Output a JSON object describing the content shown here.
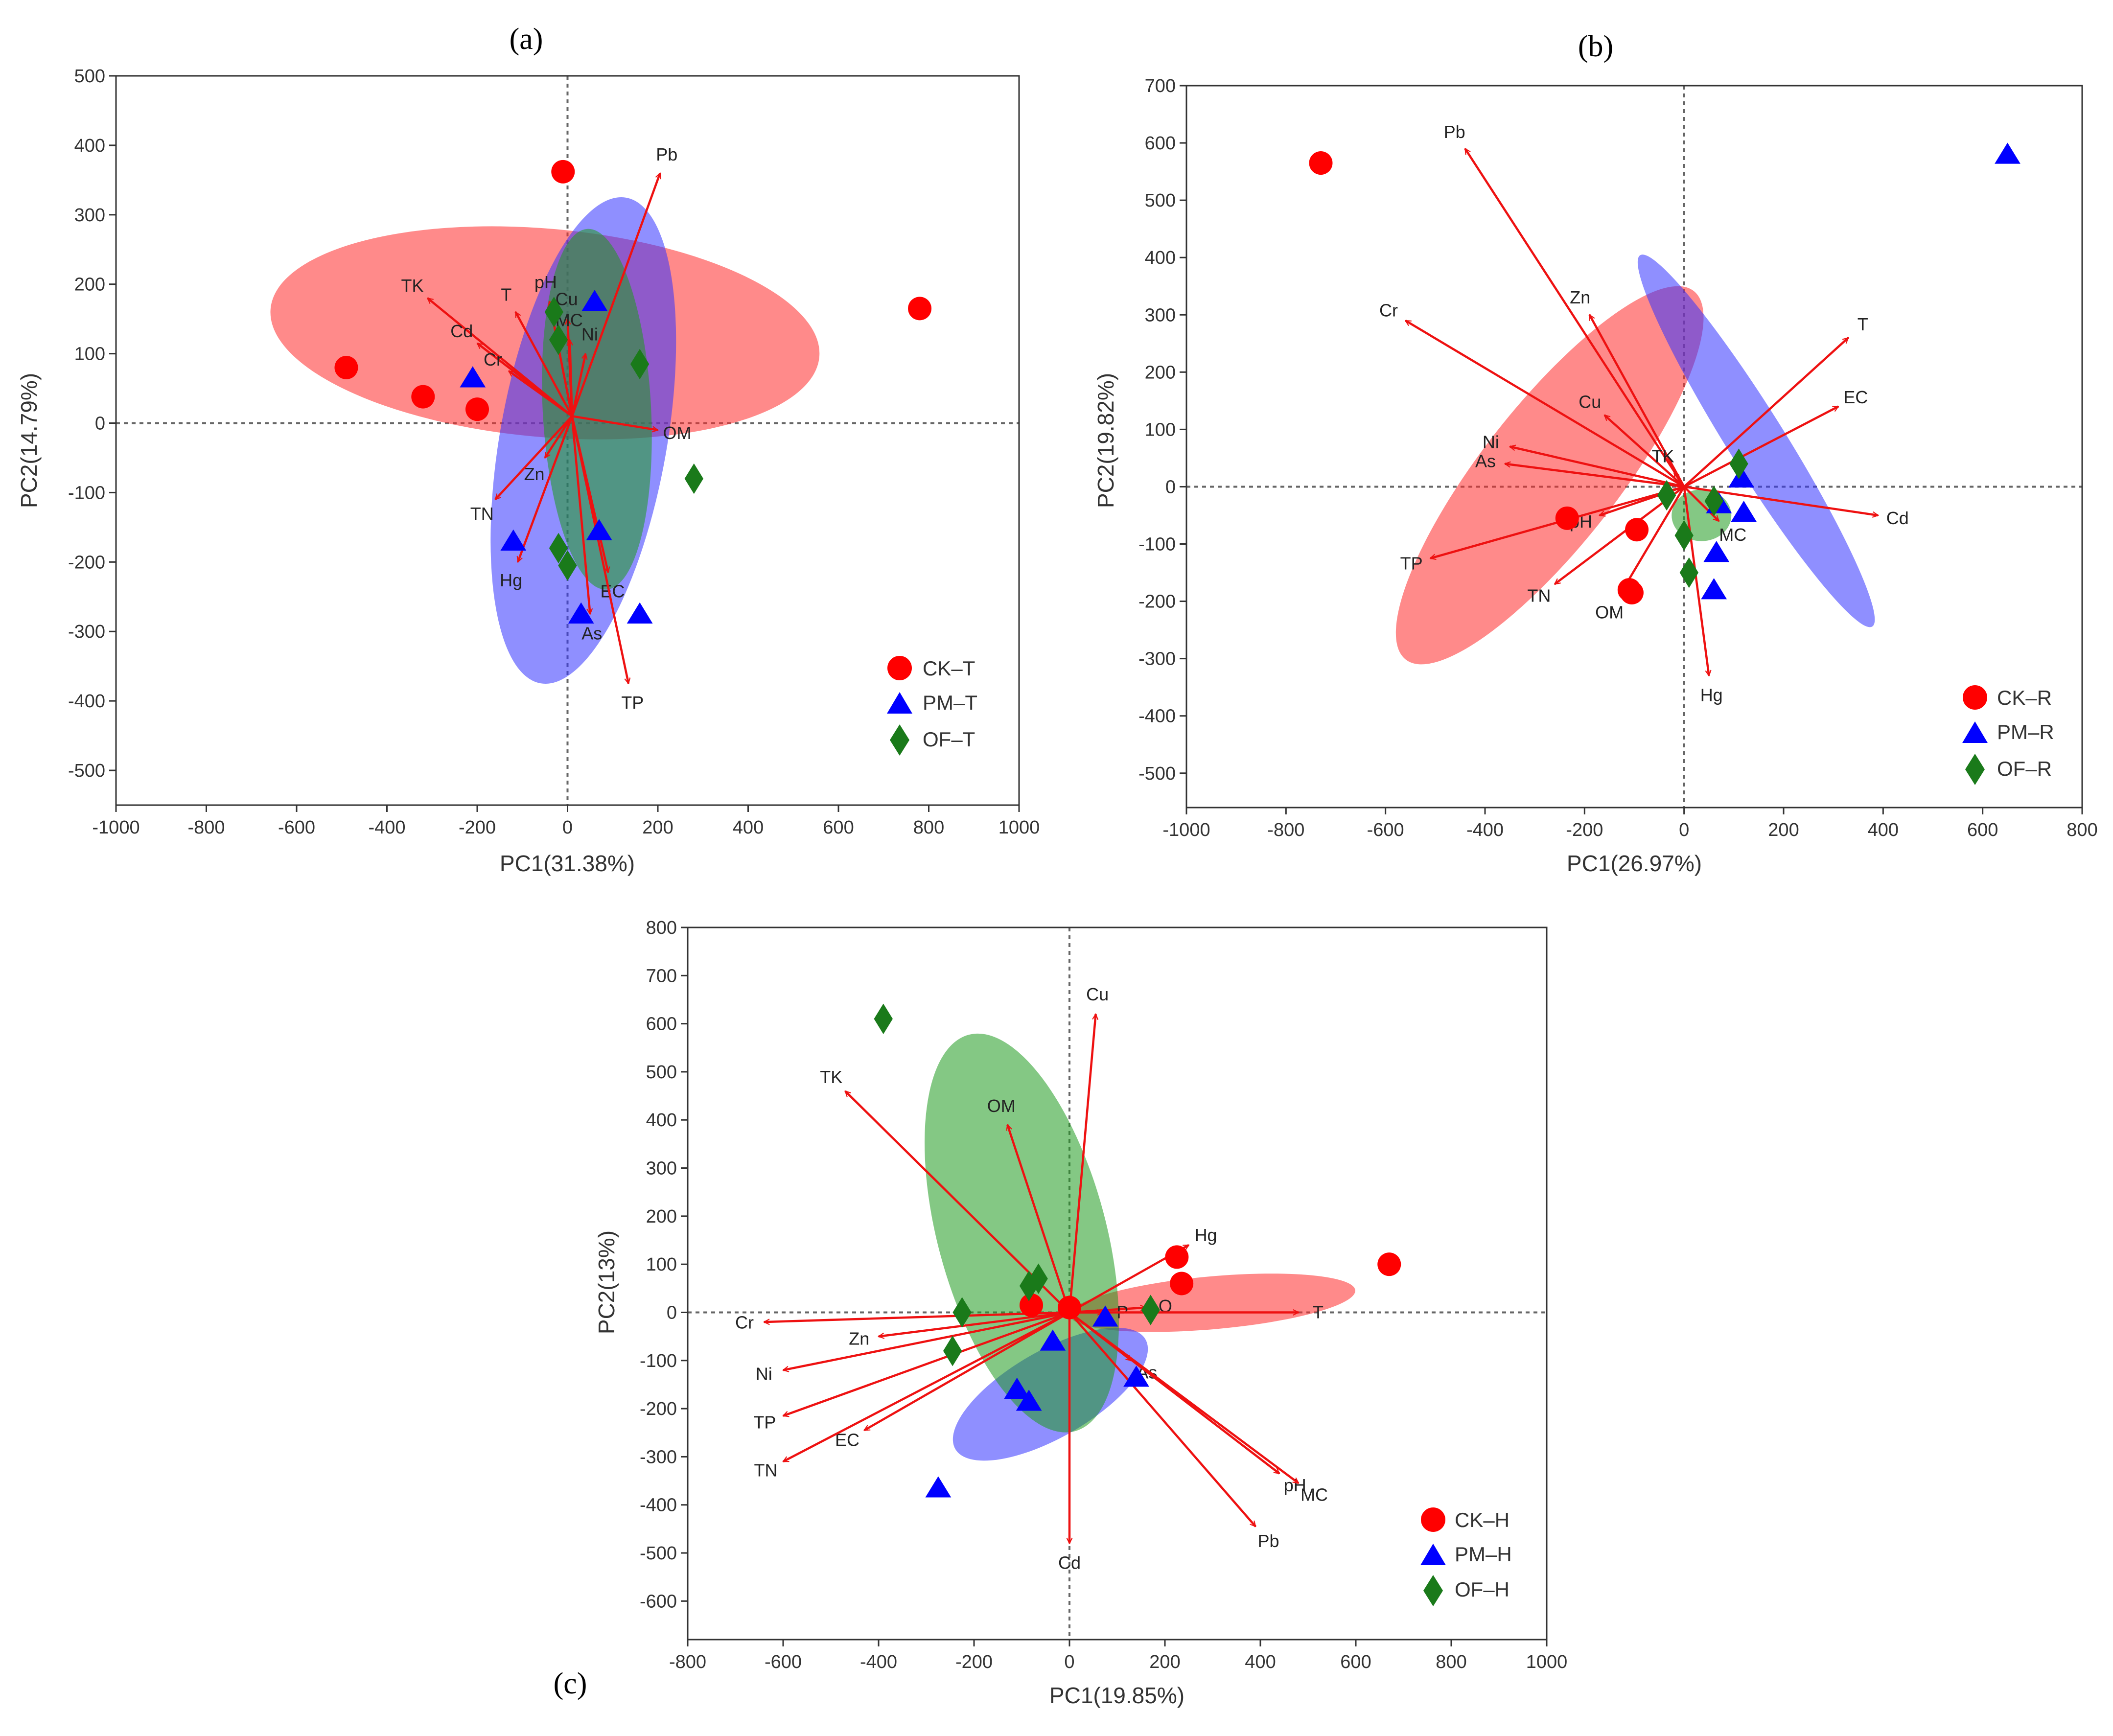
{
  "chart_data": [
    {
      "type": "scatter",
      "panel_label": "(a)",
      "xlabel": "PC1(31.38%)",
      "ylabel": "PC2(14.79%)",
      "xlim": [
        -1000,
        1000
      ],
      "ylim": [
        -550,
        500
      ],
      "xticks": [
        -1000,
        -800,
        -600,
        -400,
        -200,
        0,
        200,
        400,
        600,
        800,
        1000
      ],
      "yticks": [
        -500,
        -400,
        -300,
        -200,
        -100,
        0,
        100,
        200,
        300,
        400,
        500
      ],
      "legend": {
        "position": "bottom-right",
        "entries": [
          "CK–T",
          "PM–T",
          "OF–T"
        ]
      },
      "series": [
        {
          "name": "CK–T",
          "marker": "circle",
          "color": "#ff0000",
          "points": [
            [
              -10,
              362
            ],
            [
              780,
              165
            ],
            [
              -490,
              80
            ],
            [
              -320,
              38
            ],
            [
              -200,
              20
            ]
          ]
        },
        {
          "name": "PM–T",
          "marker": "triangle",
          "color": "#0000ff",
          "points": [
            [
              60,
              175
            ],
            [
              -210,
              65
            ],
            [
              -120,
              -170
            ],
            [
              70,
              -155
            ],
            [
              30,
              -275
            ],
            [
              160,
              -275
            ]
          ]
        },
        {
          "name": "OF–T",
          "marker": "diamond",
          "color": "#1a7a1a",
          "points": [
            [
              -30,
              160
            ],
            [
              -20,
              120
            ],
            [
              160,
              85
            ],
            [
              280,
              -80
            ],
            [
              -20,
              -180
            ],
            [
              0,
              -205
            ]
          ]
        }
      ],
      "ellipses": [
        {
          "group": "CK–T",
          "color": "#ff2a2a",
          "cx": -50,
          "cy": 130,
          "rx": 610,
          "ry": 150,
          "angle": -5
        },
        {
          "group": "PM–T",
          "color": "#3333ff",
          "cx": 35,
          "cy": -25,
          "rx": 185,
          "ry": 355,
          "angle": -10
        },
        {
          "group": "OF–T",
          "color": "#1f9a1f",
          "cx": 65,
          "cy": 20,
          "rx": 120,
          "ry": 260,
          "angle": 3
        }
      ],
      "origin": [
        10,
        10
      ],
      "arrows": [
        {
          "label": "Pb",
          "x": 205,
          "y": 360
        },
        {
          "label": "TK",
          "x": -310,
          "y": 180
        },
        {
          "label": "pH",
          "x": -40,
          "y": 175
        },
        {
          "label": "T",
          "x": -115,
          "y": 160
        },
        {
          "label": "Cu",
          "x": 0,
          "y": 150
        },
        {
          "label": "MC",
          "x": 5,
          "y": 120
        },
        {
          "label": "Cd",
          "x": -200,
          "y": 115
        },
        {
          "label": "Cr",
          "x": -130,
          "y": 75
        },
        {
          "label": "Ni",
          "x": 40,
          "y": 100
        },
        {
          "label": "OM",
          "x": 200,
          "y": -10
        },
        {
          "label": "Zn",
          "x": -50,
          "y": -50
        },
        {
          "label": "TN",
          "x": -160,
          "y": -110
        },
        {
          "label": "Hg",
          "x": -110,
          "y": -200
        },
        {
          "label": "EC",
          "x": 90,
          "y": -215
        },
        {
          "label": "As",
          "x": 50,
          "y": -275
        },
        {
          "label": "TP",
          "x": 135,
          "y": -375
        }
      ]
    },
    {
      "type": "scatter",
      "panel_label": "(b)",
      "xlabel": "PC1(26.97%)",
      "ylabel": "PC2(19.82%)",
      "xlim": [
        -1000,
        800
      ],
      "ylim": [
        -560,
        700
      ],
      "xticks": [
        -1000,
        -800,
        -600,
        -400,
        -200,
        0,
        200,
        400,
        600,
        800
      ],
      "yticks": [
        -500,
        -400,
        -300,
        -200,
        -100,
        0,
        100,
        200,
        300,
        400,
        500,
        600,
        700
      ],
      "legend": {
        "position": "bottom-right",
        "entries": [
          "CK–R",
          "PM–R",
          "OF–R"
        ]
      },
      "series": [
        {
          "name": "CK–R",
          "marker": "circle",
          "color": "#ff0000",
          "points": [
            [
              -730,
              565
            ],
            [
              -235,
              -55
            ],
            [
              -95,
              -75
            ],
            [
              -105,
              -185
            ],
            [
              -110,
              -180
            ]
          ]
        },
        {
          "name": "PM–R",
          "marker": "triangle",
          "color": "#0000ff",
          "points": [
            [
              650,
              580
            ],
            [
              70,
              -30
            ],
            [
              115,
              15
            ],
            [
              120,
              -45
            ],
            [
              65,
              -115
            ],
            [
              60,
              -180
            ]
          ]
        },
        {
          "name": "OF–R",
          "marker": "diamond",
          "color": "#1a7a1a",
          "points": [
            [
              110,
              40
            ],
            [
              -35,
              -15
            ],
            [
              60,
              -25
            ],
            [
              0,
              -85
            ],
            [
              10,
              -150
            ]
          ]
        }
      ],
      "ellipses": [
        {
          "group": "CK–R",
          "color": "#ff2a2a",
          "cx": -270,
          "cy": 20,
          "rx": 470,
          "ry": 120,
          "angle": 52
        },
        {
          "group": "PM–R",
          "color": "#3333ff",
          "cx": 145,
          "cy": 80,
          "rx": 440,
          "ry": 50,
          "angle": -58
        },
        {
          "group": "OF–R",
          "color": "#1f9a1f",
          "cx": 35,
          "cy": -50,
          "rx": 60,
          "ry": 45,
          "angle": 0
        }
      ],
      "origin": [
        0,
        0
      ],
      "arrows": [
        {
          "label": "Pb",
          "x": -440,
          "y": 590
        },
        {
          "label": "Cr",
          "x": -560,
          "y": 290
        },
        {
          "label": "Zn",
          "x": -190,
          "y": 300
        },
        {
          "label": "T",
          "x": 330,
          "y": 260
        },
        {
          "label": "EC",
          "x": 310,
          "y": 140
        },
        {
          "label": "Cu",
          "x": -160,
          "y": 125
        },
        {
          "label": "Ni",
          "x": -350,
          "y": 70
        },
        {
          "label": "As",
          "x": -360,
          "y": 40
        },
        {
          "label": "TK",
          "x": -20,
          "y": 25
        },
        {
          "label": "Cd",
          "x": 390,
          "y": -50
        },
        {
          "label": "pH",
          "x": -170,
          "y": -50
        },
        {
          "label": "MC",
          "x": 70,
          "y": -60
        },
        {
          "label": "TP",
          "x": -510,
          "y": -125
        },
        {
          "label": "TN",
          "x": -260,
          "y": -170
        },
        {
          "label": "OM",
          "x": -130,
          "y": -190
        },
        {
          "label": "Hg",
          "x": 50,
          "y": -330
        }
      ]
    },
    {
      "type": "scatter",
      "panel_label": "(c)",
      "xlabel": "PC1(19.85%)",
      "ylabel": "PC2(13%)",
      "xlim": [
        -800,
        1000
      ],
      "ylim": [
        -680,
        800
      ],
      "xticks": [
        -800,
        -600,
        -400,
        -200,
        0,
        200,
        400,
        600,
        800,
        1000
      ],
      "yticks": [
        -600,
        -500,
        -400,
        -300,
        -200,
        -100,
        0,
        100,
        200,
        300,
        400,
        500,
        600,
        700,
        800
      ],
      "legend": {
        "position": "bottom-right",
        "entries": [
          "CK–H",
          "PM–H",
          "OF–H"
        ]
      },
      "series": [
        {
          "name": "CK–H",
          "marker": "circle",
          "color": "#ff0000",
          "points": [
            [
              670,
              100
            ],
            [
              225,
              115
            ],
            [
              235,
              60
            ],
            [
              -80,
              15
            ],
            [
              0,
              10
            ]
          ]
        },
        {
          "name": "PM–H",
          "marker": "triangle",
          "color": "#0000ff",
          "points": [
            [
              75,
              -10
            ],
            [
              -35,
              -60
            ],
            [
              140,
              -135
            ],
            [
              -110,
              -160
            ],
            [
              -85,
              -185
            ],
            [
              -275,
              -365
            ]
          ]
        },
        {
          "name": "OF–H",
          "marker": "diamond",
          "color": "#1a7a1a",
          "points": [
            [
              -390,
              610
            ],
            [
              -85,
              55
            ],
            [
              -65,
              70
            ],
            [
              -225,
              0
            ],
            [
              -245,
              -80
            ],
            [
              170,
              5
            ]
          ]
        }
      ],
      "ellipses": [
        {
          "group": "CK–H",
          "color": "#ff2a2a",
          "cx": 300,
          "cy": 20,
          "rx": 300,
          "ry": 55,
          "angle": 5
        },
        {
          "group": "PM–H",
          "color": "#3333ff",
          "cx": -40,
          "cy": -170,
          "rx": 230,
          "ry": 90,
          "angle": 30
        },
        {
          "group": "OF–H",
          "color": "#1f9a1f",
          "cx": -100,
          "cy": 165,
          "rx": 430,
          "ry": 175,
          "angle": -75
        }
      ],
      "origin": [
        0,
        0
      ],
      "arrows": [
        {
          "label": "Cu",
          "x": 55,
          "y": 620
        },
        {
          "label": "TK",
          "x": -470,
          "y": 460
        },
        {
          "label": "OM",
          "x": -130,
          "y": 390
        },
        {
          "label": "Hg",
          "x": 250,
          "y": 140
        },
        {
          "label": "O",
          "x": 160,
          "y": 10
        },
        {
          "label": "P",
          "x": 70,
          "y": 0
        },
        {
          "label": "T",
          "x": 480,
          "y": 0
        },
        {
          "label": "Cr",
          "x": -640,
          "y": -20
        },
        {
          "label": "Zn",
          "x": -400,
          "y": -50
        },
        {
          "label": "Ni",
          "x": -600,
          "y": -120
        },
        {
          "label": "As",
          "x": 130,
          "y": -100
        },
        {
          "label": "TP",
          "x": -600,
          "y": -215
        },
        {
          "label": "EC",
          "x": -430,
          "y": -245
        },
        {
          "label": "TN",
          "x": -600,
          "y": -310
        },
        {
          "label": "pH",
          "x": 440,
          "y": -335
        },
        {
          "label": "MC",
          "x": 480,
          "y": -355
        },
        {
          "label": "Pb",
          "x": 390,
          "y": -445
        },
        {
          "label": "Cd",
          "x": 0,
          "y": -480
        }
      ]
    }
  ]
}
